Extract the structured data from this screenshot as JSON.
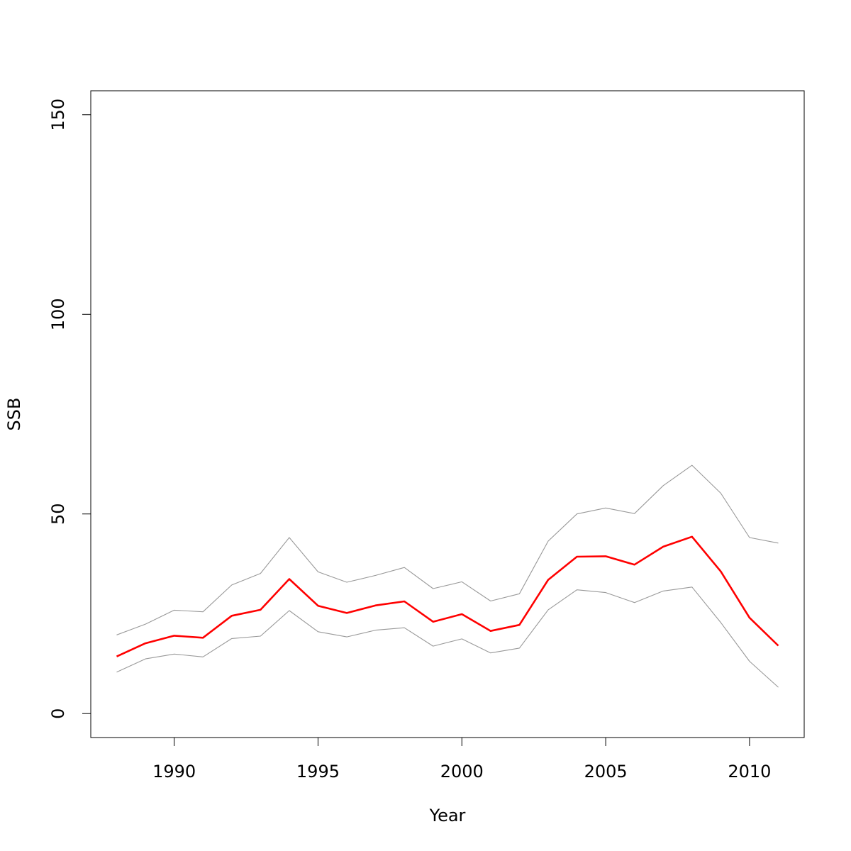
{
  "chart_data": {
    "type": "line",
    "title": "",
    "xlabel": "Year",
    "ylabel": "SSB",
    "xlim": [
      1987.1,
      2011.9
    ],
    "ylim": [
      -6,
      156
    ],
    "x_ticks": [
      1990,
      1995,
      2000,
      2005,
      2010
    ],
    "x_tick_labels": [
      "1990",
      "1995",
      "2000",
      "2005",
      "2010"
    ],
    "y_ticks": [
      0,
      50,
      100,
      150
    ],
    "y_tick_labels": [
      "0",
      "50",
      "100",
      "150"
    ],
    "grid": false,
    "x": [
      1988,
      1989,
      1990,
      1991,
      1992,
      1993,
      1994,
      1995,
      1996,
      1997,
      1998,
      1999,
      2000,
      2001,
      2002,
      2003,
      2004,
      2005,
      2006,
      2007,
      2008,
      2009,
      2010,
      2011
    ],
    "series": [
      {
        "color": "#ff0000",
        "values": [
          14.3,
          17.6,
          19.5,
          19.0,
          24.5,
          26.0,
          33.7,
          27.0,
          25.2,
          27.1,
          28.1,
          23.0,
          24.9,
          20.7,
          22.2,
          33.5,
          39.3,
          39.4,
          37.3,
          41.8,
          44.3,
          35.6,
          24.0,
          17.0
        ]
      },
      {
        "color": "#999999",
        "values": [
          19.7,
          22.4,
          25.9,
          25.5,
          32.2,
          35.1,
          44.1,
          35.5,
          32.9,
          34.6,
          36.6,
          31.3,
          33.0,
          28.2,
          30.0,
          43.2,
          50.0,
          51.5,
          50.1,
          57.1,
          62.2,
          55.2,
          44.1,
          42.7
        ]
      },
      {
        "color": "#999999",
        "values": [
          10.4,
          13.7,
          14.9,
          14.2,
          18.8,
          19.4,
          25.8,
          20.5,
          19.2,
          20.9,
          21.5,
          16.9,
          18.7,
          15.2,
          16.4,
          26.0,
          31.0,
          30.3,
          27.8,
          30.7,
          31.7,
          22.8,
          13.1,
          6.6
        ]
      }
    ]
  }
}
